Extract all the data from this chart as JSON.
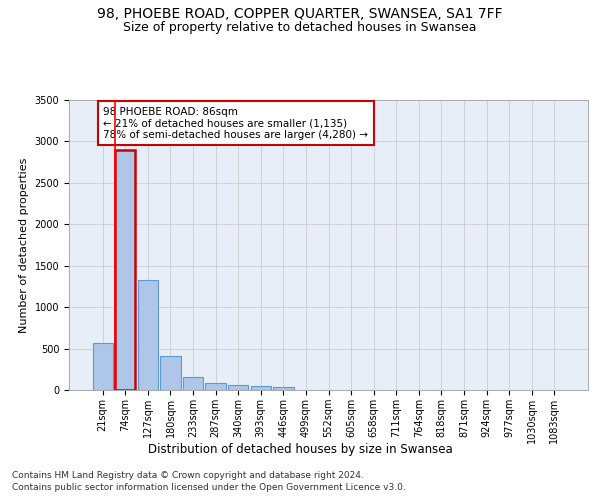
{
  "title1": "98, PHOEBE ROAD, COPPER QUARTER, SWANSEA, SA1 7FF",
  "title2": "Size of property relative to detached houses in Swansea",
  "xlabel": "Distribution of detached houses by size in Swansea",
  "ylabel": "Number of detached properties",
  "bin_labels": [
    "21sqm",
    "74sqm",
    "127sqm",
    "180sqm",
    "233sqm",
    "287sqm",
    "340sqm",
    "393sqm",
    "446sqm",
    "499sqm",
    "552sqm",
    "605sqm",
    "658sqm",
    "711sqm",
    "764sqm",
    "818sqm",
    "871sqm",
    "924sqm",
    "977sqm",
    "1030sqm",
    "1083sqm"
  ],
  "bar_values": [
    570,
    2900,
    1330,
    415,
    155,
    80,
    55,
    45,
    40,
    0,
    0,
    0,
    0,
    0,
    0,
    0,
    0,
    0,
    0,
    0,
    0
  ],
  "bar_color": "#aec6e8",
  "bar_edge_color": "#5b9bd5",
  "highlight_bar_index": 1,
  "annotation_text": "98 PHOEBE ROAD: 86sqm\n← 21% of detached houses are smaller (1,135)\n78% of semi-detached houses are larger (4,280) →",
  "annotation_box_color": "#ffffff",
  "annotation_box_edge_color": "#cc0000",
  "ylim": [
    0,
    3500
  ],
  "yticks": [
    0,
    500,
    1000,
    1500,
    2000,
    2500,
    3000,
    3500
  ],
  "grid_color": "#cccccc",
  "background_color": "#e8eef8",
  "footer_line1": "Contains HM Land Registry data © Crown copyright and database right 2024.",
  "footer_line2": "Contains public sector information licensed under the Open Government Licence v3.0.",
  "title1_fontsize": 10,
  "title2_fontsize": 9,
  "xlabel_fontsize": 8.5,
  "ylabel_fontsize": 8,
  "tick_fontsize": 7,
  "annotation_fontsize": 7.5,
  "footer_fontsize": 6.5
}
